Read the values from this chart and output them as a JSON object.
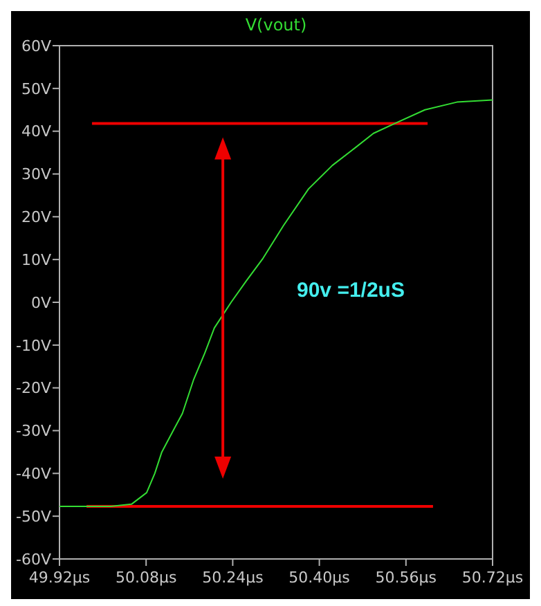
{
  "chart_data": {
    "type": "line",
    "title": "V(vout)",
    "xlim": [
      49.92,
      50.72
    ],
    "xticks": [
      {
        "value": 49.92,
        "label": "49.92µs"
      },
      {
        "value": 50.08,
        "label": "50.08µs"
      },
      {
        "value": 50.24,
        "label": "50.24µs"
      },
      {
        "value": 50.4,
        "label": "50.40µs"
      },
      {
        "value": 50.56,
        "label": "50.56µs"
      },
      {
        "value": 50.72,
        "label": "50.72µs"
      }
    ],
    "ylim": [
      -60,
      60
    ],
    "yticks": [
      {
        "value": -60,
        "label": "-60V"
      },
      {
        "value": -50,
        "label": "-50V"
      },
      {
        "value": -40,
        "label": "-40V"
      },
      {
        "value": -30,
        "label": "-30V"
      },
      {
        "value": -20,
        "label": "-20V"
      },
      {
        "value": -10,
        "label": "-10V"
      },
      {
        "value": 0,
        "label": "0V"
      },
      {
        "value": 10,
        "label": "10V"
      },
      {
        "value": 20,
        "label": "20V"
      },
      {
        "value": 30,
        "label": "30V"
      },
      {
        "value": 40,
        "label": "40V"
      },
      {
        "value": 50,
        "label": "50V"
      },
      {
        "value": 60,
        "label": "60V"
      }
    ],
    "grid": false,
    "series": [
      {
        "color": "#33dd33",
        "x": [
          49.92,
          50.015,
          50.053,
          50.081,
          50.096,
          50.109,
          50.13,
          50.147,
          50.168,
          50.188,
          50.206,
          50.237,
          50.265,
          50.296,
          50.334,
          50.38,
          50.424,
          50.467,
          50.5,
          50.539,
          50.595,
          50.654,
          50.72
        ],
        "values": [
          -47.7,
          -47.7,
          -47.2,
          -44.5,
          -40,
          -35,
          -30,
          -26,
          -18,
          -12,
          -6,
          0,
          5,
          10.3,
          18,
          26.5,
          32,
          36.2,
          39.5,
          41.8,
          45,
          46.8,
          47.3
        ]
      },
      {
        "color": "#ee0000",
        "x": [
          49.98,
          50.6
        ],
        "values": [
          41.8,
          41.8
        ]
      },
      {
        "color": "#ee0000",
        "x": [
          49.97,
          50.61
        ],
        "values": [
          -47.7,
          -47.7
        ]
      }
    ],
    "annotations": [
      "90v =1/2uS"
    ]
  }
}
